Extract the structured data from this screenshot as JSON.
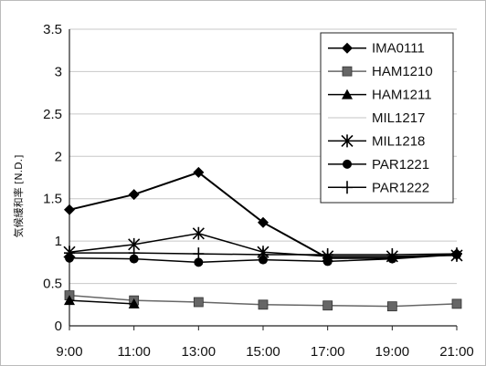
{
  "chart_data": {
    "type": "line",
    "title": "",
    "xlabel": "",
    "ylabel": "気候緩和率 [N.D.]",
    "categories": [
      "9:00",
      "11:00",
      "13:00",
      "15:00",
      "17:00",
      "19:00",
      "21:00"
    ],
    "ylim": [
      0,
      3.5
    ],
    "yticks": [
      "0",
      "0.5",
      "1",
      "1.5",
      "2",
      "2.5",
      "3",
      "3.5"
    ],
    "grid": "horizontal",
    "legend_position": "top-right",
    "series": [
      {
        "name": "IMA0111",
        "marker": "diamond",
        "color": "#000000",
        "values": [
          1.37,
          1.55,
          1.81,
          1.22,
          0.8,
          0.8,
          0.85
        ]
      },
      {
        "name": "HAM1210",
        "marker": "square",
        "color": "#666666",
        "values": [
          0.36,
          0.3,
          0.28,
          0.25,
          0.24,
          0.23,
          0.26
        ]
      },
      {
        "name": "HAM1211",
        "marker": "triangle",
        "color": "#000000",
        "values": [
          0.3,
          0.26,
          null,
          null,
          null,
          null,
          null
        ]
      },
      {
        "name": "MIL1217",
        "marker": "none",
        "color": "#d8d8d8",
        "values": [
          null,
          null,
          null,
          null,
          null,
          null,
          null
        ]
      },
      {
        "name": "MIL1218",
        "marker": "star",
        "color": "#000000",
        "values": [
          0.87,
          0.96,
          1.09,
          0.87,
          0.82,
          0.82,
          0.83
        ]
      },
      {
        "name": "PAR1221",
        "marker": "circle",
        "color": "#000000",
        "values": [
          0.8,
          0.79,
          0.75,
          0.78,
          0.76,
          0.79,
          0.84
        ]
      },
      {
        "name": "PAR1222",
        "marker": "plus",
        "color": "#000000",
        "values": [
          0.86,
          0.86,
          0.85,
          0.84,
          0.84,
          0.84,
          0.85
        ]
      }
    ]
  }
}
